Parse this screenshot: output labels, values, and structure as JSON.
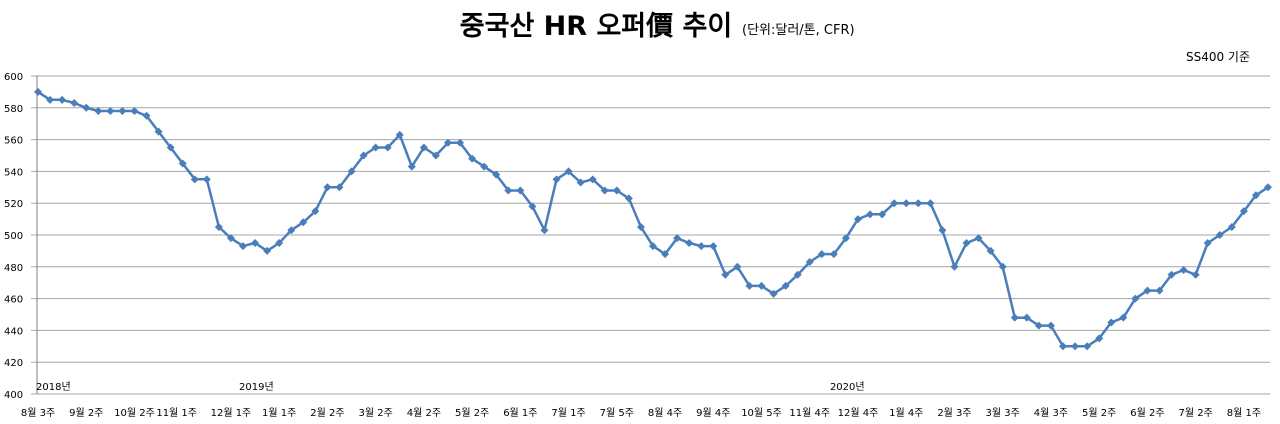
{
  "chart_data": {
    "type": "line",
    "title": "중국산 HR 오퍼價 추이",
    "unit_label": "(단위:달러/톤, CFR)",
    "note": "SS400 기준",
    "ylim": [
      400,
      600
    ],
    "yticks": [
      400,
      420,
      440,
      460,
      480,
      500,
      520,
      540,
      560,
      580,
      600
    ],
    "grid": true,
    "legend": "none",
    "year_labels": [
      {
        "label": "2018년",
        "index": 0
      },
      {
        "label": "2019년",
        "index": 18
      },
      {
        "label": "2020년",
        "index": 67
      }
    ],
    "x_tick_labels": [
      {
        "label": "8월 3주",
        "index": 0
      },
      {
        "label": "9월 2주",
        "index": 4
      },
      {
        "label": "10월 2주",
        "index": 8
      },
      {
        "label": "11월 1주",
        "index": 11.5
      },
      {
        "label": "12월 1주",
        "index": 16
      },
      {
        "label": "1월 1주",
        "index": 20
      },
      {
        "label": "2월 2주",
        "index": 24
      },
      {
        "label": "3월 2주",
        "index": 28
      },
      {
        "label": "4월 2주",
        "index": 32
      },
      {
        "label": "5월 2주",
        "index": 36
      },
      {
        "label": "6월 1주",
        "index": 40
      },
      {
        "label": "7월 1주",
        "index": 44
      },
      {
        "label": "7월 5주",
        "index": 48
      },
      {
        "label": "8월 4주",
        "index": 52
      },
      {
        "label": "9월 4주",
        "index": 56
      },
      {
        "label": "10월 5주",
        "index": 60
      },
      {
        "label": "11월 4주",
        "index": 64
      },
      {
        "label": "12월 4주",
        "index": 68
      },
      {
        "label": "1월 4주",
        "index": 72
      },
      {
        "label": "2월 3주",
        "index": 76
      },
      {
        "label": "3월 3주",
        "index": 80
      },
      {
        "label": "4월 3주",
        "index": 84
      },
      {
        "label": "5월 2주",
        "index": 88
      },
      {
        "label": "6월 2주",
        "index": 92
      },
      {
        "label": "7월 2주",
        "index": 96
      },
      {
        "label": "8월 1주",
        "index": 100
      }
    ],
    "series": [
      {
        "color": "#4a7ebb",
        "values": [
          590,
          585,
          585,
          583,
          580,
          578,
          578,
          578,
          578,
          575,
          565,
          555,
          545,
          535,
          535,
          505,
          498,
          493,
          495,
          490,
          495,
          503,
          508,
          515,
          530,
          530,
          540,
          550,
          555,
          555,
          563,
          543,
          555,
          550,
          558,
          558,
          548,
          543,
          538,
          528,
          528,
          518,
          503,
          535,
          540,
          533,
          535,
          528,
          528,
          523,
          505,
          493,
          488,
          498,
          495,
          493,
          493,
          475,
          480,
          468,
          468,
          463,
          468,
          475,
          483,
          488,
          488,
          498,
          510,
          513,
          513,
          520,
          520,
          520,
          520,
          503,
          480,
          495,
          498,
          490,
          480,
          448,
          448,
          443,
          443,
          430,
          430,
          430,
          435,
          445,
          448,
          460,
          465,
          465,
          475,
          478,
          475,
          495,
          500,
          505,
          515,
          525,
          530
        ]
      }
    ]
  }
}
